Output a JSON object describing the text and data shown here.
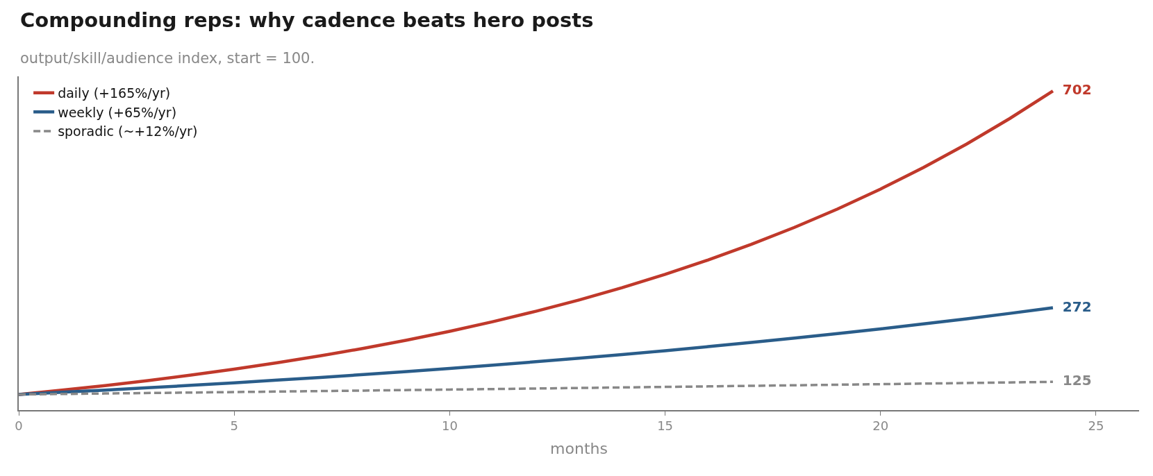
{
  "chart_data": {
    "type": "line",
    "title": "Compounding reps: why cadence beats hero posts",
    "subtitle": "output/skill/audience index, start = 100.",
    "xlabel": "months",
    "xlim": [
      0,
      26
    ],
    "xticks": [
      0,
      5,
      10,
      15,
      20,
      25
    ],
    "ylim": [
      69,
      731
    ],
    "tick_labels": "x",
    "legend": "top left",
    "series": [
      {
        "name": "daily (+165%/yr)",
        "color": "#c0392b",
        "line_style": "solid",
        "x": [
          0,
          1,
          2,
          3,
          4,
          5,
          6,
          7,
          8,
          9,
          10,
          11,
          12,
          13,
          14,
          15,
          16,
          17,
          18,
          19,
          20,
          21,
          22,
          23,
          24
        ],
        "values": [
          100,
          108.5,
          117.6,
          127.6,
          138.4,
          150.1,
          162.8,
          176.6,
          191.5,
          207.7,
          225.3,
          244.3,
          265.0,
          287.4,
          311.7,
          338.1,
          366.7,
          397.7,
          431.3,
          467.8,
          507.4,
          550.3,
          596.9,
          647.4,
          702
        ],
        "value_labels": [
          null,
          null,
          null,
          null,
          null,
          null,
          null,
          null,
          null,
          null,
          null,
          null,
          null,
          null,
          null,
          null,
          null,
          null,
          null,
          null,
          null,
          null,
          null,
          null,
          "702"
        ]
      },
      {
        "name": "weekly (+65%/yr)",
        "color": "#2a5d8a",
        "line_style": "solid",
        "x": [
          0,
          1,
          2,
          3,
          4,
          5,
          6,
          7,
          8,
          9,
          10,
          11,
          12,
          13,
          14,
          15,
          16,
          17,
          18,
          19,
          20,
          21,
          22,
          23,
          24
        ],
        "values": [
          100,
          104.3,
          108.7,
          113.3,
          118.1,
          123.1,
          128.4,
          133.8,
          139.5,
          145.5,
          151.7,
          158.1,
          164.9,
          171.9,
          179.2,
          186.8,
          194.8,
          203.1,
          211.7,
          220.7,
          230.1,
          239.9,
          250.1,
          260.8,
          272
        ],
        "value_labels": [
          null,
          null,
          null,
          null,
          null,
          null,
          null,
          null,
          null,
          null,
          null,
          null,
          null,
          null,
          null,
          null,
          null,
          null,
          null,
          null,
          null,
          null,
          null,
          null,
          "272"
        ]
      },
      {
        "name": "sporadic (~+12%/yr)",
        "color": "#888888",
        "line_style": "dashed",
        "x": [
          0,
          2,
          4,
          6,
          8,
          10,
          12,
          14,
          16,
          18,
          20,
          22,
          24
        ],
        "values": [
          100,
          101.9,
          103.8,
          105.7,
          107.7,
          109.7,
          111.8,
          113.9,
          116.0,
          118.2,
          120.4,
          122.7,
          125
        ],
        "value_labels": [
          null,
          null,
          null,
          null,
          null,
          null,
          null,
          null,
          null,
          null,
          null,
          null,
          "125"
        ]
      }
    ]
  }
}
